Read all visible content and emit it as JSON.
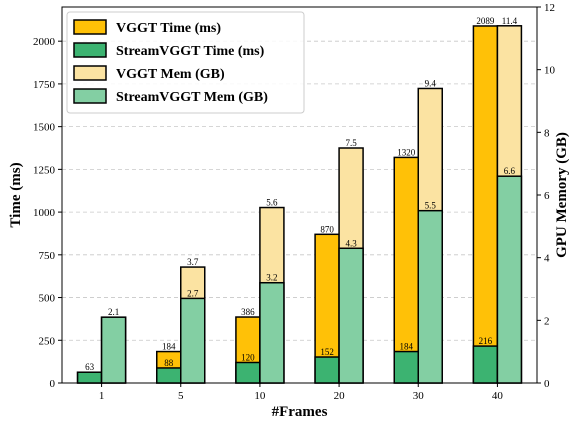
{
  "chart_data": {
    "type": "bar",
    "xlabel": "#Frames",
    "ylabel_left": "Time (ms)",
    "ylabel_right": "GPU Memory (GB)",
    "categories": [
      "1",
      "5",
      "10",
      "20",
      "30",
      "40"
    ],
    "ylim_left": [
      0,
      2200
    ],
    "ylim_right": [
      0,
      12
    ],
    "yticks_left": [
      "0",
      "250",
      "500",
      "750",
      "1000",
      "1250",
      "1500",
      "1750",
      "2000"
    ],
    "yticks_right": [
      "0",
      "2",
      "4",
      "6",
      "8",
      "10",
      "12"
    ],
    "grid": "horizontal-dashed",
    "legend_position": "top-left",
    "series": [
      {
        "name": "VGGT Time (ms)",
        "axis": "left",
        "color": "#FFC107",
        "values": [
          63,
          184,
          386,
          870,
          1320,
          2089
        ],
        "labels": [
          "",
          "184",
          "386",
          "870",
          "1320",
          "2089"
        ]
      },
      {
        "name": "StreamVGGT Time (ms)",
        "axis": "left",
        "color": "#3CB371",
        "values": [
          63,
          88,
          120,
          152,
          184,
          216
        ],
        "labels": [
          "63",
          "88",
          "120",
          "152",
          "184",
          "216"
        ]
      },
      {
        "name": "VGGT Mem (GB)",
        "axis": "right",
        "color": "#FBE3A2",
        "values": [
          2.1,
          3.7,
          5.6,
          7.5,
          9.4,
          11.4
        ],
        "labels": [
          "",
          "3.7",
          "5.6",
          "7.5",
          "9.4",
          "11.4"
        ]
      },
      {
        "name": "StreamVGGT Mem (GB)",
        "axis": "right",
        "color": "#83CFA3",
        "values": [
          2.1,
          2.7,
          3.2,
          4.3,
          5.5,
          6.6
        ],
        "labels": [
          "2.1",
          "2.7",
          "3.2",
          "4.3",
          "5.5",
          "6.6"
        ]
      }
    ]
  }
}
